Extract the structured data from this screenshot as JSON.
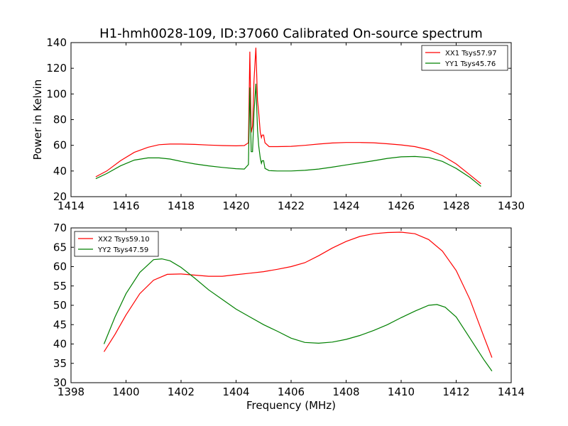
{
  "chart_data": [
    {
      "type": "line",
      "title": "H1-hmh0028-109, ID:37060 Calibrated On-source spectrum",
      "xlabel": "",
      "ylabel": "Power in Kelvin",
      "xlim": [
        1414,
        1430
      ],
      "ylim": [
        20,
        140
      ],
      "xticks": [
        "1414",
        "1416",
        "1418",
        "1420",
        "1422",
        "1424",
        "1426",
        "1428",
        "1430"
      ],
      "yticks": [
        "20",
        "40",
        "60",
        "80",
        "100",
        "120",
        "140"
      ],
      "grid": false,
      "legend_position": "top-right",
      "series": [
        {
          "name": "XX1 Tsys57.97",
          "color": "#ff0000",
          "points": [
            [
              1414.9,
              35.5
            ],
            [
              1415.3,
              40
            ],
            [
              1415.8,
              48
            ],
            [
              1416.3,
              54.5
            ],
            [
              1416.8,
              58.5
            ],
            [
              1417.2,
              60.5
            ],
            [
              1417.6,
              61
            ],
            [
              1418.0,
              61
            ],
            [
              1418.5,
              60.7
            ],
            [
              1419.0,
              60.2
            ],
            [
              1419.5,
              59.8
            ],
            [
              1420.0,
              59.6
            ],
            [
              1420.3,
              59.8
            ],
            [
              1420.45,
              62
            ],
            [
              1420.5,
              133
            ],
            [
              1420.55,
              70
            ],
            [
              1420.6,
              75
            ],
            [
              1420.65,
              110
            ],
            [
              1420.72,
              136
            ],
            [
              1420.78,
              95
            ],
            [
              1420.82,
              86
            ],
            [
              1420.88,
              70
            ],
            [
              1420.92,
              66
            ],
            [
              1420.95,
              68
            ],
            [
              1421.0,
              68
            ],
            [
              1421.05,
              62
            ],
            [
              1421.2,
              59
            ],
            [
              1421.5,
              59
            ],
            [
              1422.0,
              59.2
            ],
            [
              1422.5,
              60
            ],
            [
              1423.0,
              61
            ],
            [
              1423.5,
              61.8
            ],
            [
              1424.0,
              62.2
            ],
            [
              1424.5,
              62.2
            ],
            [
              1425.0,
              62
            ],
            [
              1425.5,
              61.2
            ],
            [
              1426.0,
              60.3
            ],
            [
              1426.5,
              59
            ],
            [
              1427.0,
              56.5
            ],
            [
              1427.5,
              52
            ],
            [
              1428.0,
              45.5
            ],
            [
              1428.5,
              37
            ],
            [
              1428.9,
              30
            ]
          ]
        },
        {
          "name": "YY1 Tsys45.76",
          "color": "#008000",
          "points": [
            [
              1414.9,
              34
            ],
            [
              1415.3,
              38
            ],
            [
              1415.8,
              44
            ],
            [
              1416.3,
              48.5
            ],
            [
              1416.8,
              50.2
            ],
            [
              1417.2,
              50.2
            ],
            [
              1417.6,
              49.3
            ],
            [
              1418.0,
              47.5
            ],
            [
              1418.5,
              45.5
            ],
            [
              1419.0,
              44
            ],
            [
              1419.5,
              42.8
            ],
            [
              1420.0,
              41.8
            ],
            [
              1420.3,
              41.5
            ],
            [
              1420.45,
              45
            ],
            [
              1420.5,
              105
            ],
            [
              1420.55,
              55
            ],
            [
              1420.6,
              55
            ],
            [
              1420.65,
              85
            ],
            [
              1420.72,
              108
            ],
            [
              1420.78,
              72
            ],
            [
              1420.82,
              60
            ],
            [
              1420.88,
              50
            ],
            [
              1420.92,
              46
            ],
            [
              1420.95,
              48
            ],
            [
              1421.0,
              48
            ],
            [
              1421.05,
              42
            ],
            [
              1421.2,
              40.3
            ],
            [
              1421.5,
              40
            ],
            [
              1422.0,
              40
            ],
            [
              1422.5,
              40.5
            ],
            [
              1423.0,
              41.5
            ],
            [
              1423.5,
              43
            ],
            [
              1424.0,
              44.7
            ],
            [
              1424.5,
              46.3
            ],
            [
              1425.0,
              48
            ],
            [
              1425.5,
              49.8
            ],
            [
              1426.0,
              51
            ],
            [
              1426.5,
              51.3
            ],
            [
              1427.0,
              50.5
            ],
            [
              1427.5,
              47.5
            ],
            [
              1428.0,
              42
            ],
            [
              1428.5,
              35
            ],
            [
              1428.9,
              28
            ]
          ]
        }
      ]
    },
    {
      "type": "line",
      "title": "",
      "xlabel": "Frequency (MHz)",
      "ylabel": "",
      "xlim": [
        1398,
        1414
      ],
      "ylim": [
        30,
        70
      ],
      "xticks": [
        "1398",
        "1400",
        "1402",
        "1404",
        "1406",
        "1408",
        "1410",
        "1412",
        "1414"
      ],
      "yticks": [
        "30",
        "35",
        "40",
        "45",
        "50",
        "55",
        "60",
        "65",
        "70"
      ],
      "grid": false,
      "legend_position": "top-left",
      "series": [
        {
          "name": "XX2 Tsys59.10",
          "color": "#ff0000",
          "points": [
            [
              1399.2,
              38
            ],
            [
              1399.6,
              42.5
            ],
            [
              1400.0,
              47.5
            ],
            [
              1400.5,
              53
            ],
            [
              1401.0,
              56.5
            ],
            [
              1401.5,
              58
            ],
            [
              1402.0,
              58.1
            ],
            [
              1402.5,
              57.8
            ],
            [
              1403.0,
              57.5
            ],
            [
              1403.5,
              57.5
            ],
            [
              1404.0,
              57.9
            ],
            [
              1404.5,
              58.3
            ],
            [
              1405.0,
              58.7
            ],
            [
              1405.5,
              59.3
            ],
            [
              1406.0,
              60
            ],
            [
              1406.5,
              61
            ],
            [
              1407.0,
              62.8
            ],
            [
              1407.5,
              64.8
            ],
            [
              1408.0,
              66.5
            ],
            [
              1408.5,
              67.8
            ],
            [
              1409.0,
              68.5
            ],
            [
              1409.5,
              68.8
            ],
            [
              1410.0,
              68.9
            ],
            [
              1410.5,
              68.5
            ],
            [
              1411.0,
              67
            ],
            [
              1411.5,
              64
            ],
            [
              1412.0,
              59
            ],
            [
              1412.5,
              51.5
            ],
            [
              1413.0,
              42
            ],
            [
              1413.3,
              36.5
            ]
          ]
        },
        {
          "name": "YY2 Tsys47.59",
          "color": "#008000",
          "points": [
            [
              1399.2,
              40
            ],
            [
              1399.6,
              47
            ],
            [
              1400.0,
              53
            ],
            [
              1400.5,
              58.5
            ],
            [
              1401.0,
              61.8
            ],
            [
              1401.3,
              62
            ],
            [
              1401.6,
              61.5
            ],
            [
              1402.0,
              59.8
            ],
            [
              1402.5,
              57
            ],
            [
              1403.0,
              54
            ],
            [
              1403.5,
              51.5
            ],
            [
              1404.0,
              49
            ],
            [
              1404.5,
              47
            ],
            [
              1405.0,
              45
            ],
            [
              1405.5,
              43.3
            ],
            [
              1406.0,
              41.5
            ],
            [
              1406.5,
              40.4
            ],
            [
              1407.0,
              40.2
            ],
            [
              1407.5,
              40.5
            ],
            [
              1408.0,
              41.2
            ],
            [
              1408.5,
              42.2
            ],
            [
              1409.0,
              43.5
            ],
            [
              1409.5,
              45
            ],
            [
              1410.0,
              46.8
            ],
            [
              1410.5,
              48.5
            ],
            [
              1411.0,
              50
            ],
            [
              1411.3,
              50.2
            ],
            [
              1411.6,
              49.5
            ],
            [
              1412.0,
              47
            ],
            [
              1412.5,
              41.5
            ],
            [
              1413.0,
              36
            ],
            [
              1413.3,
              33
            ]
          ]
        }
      ]
    }
  ]
}
